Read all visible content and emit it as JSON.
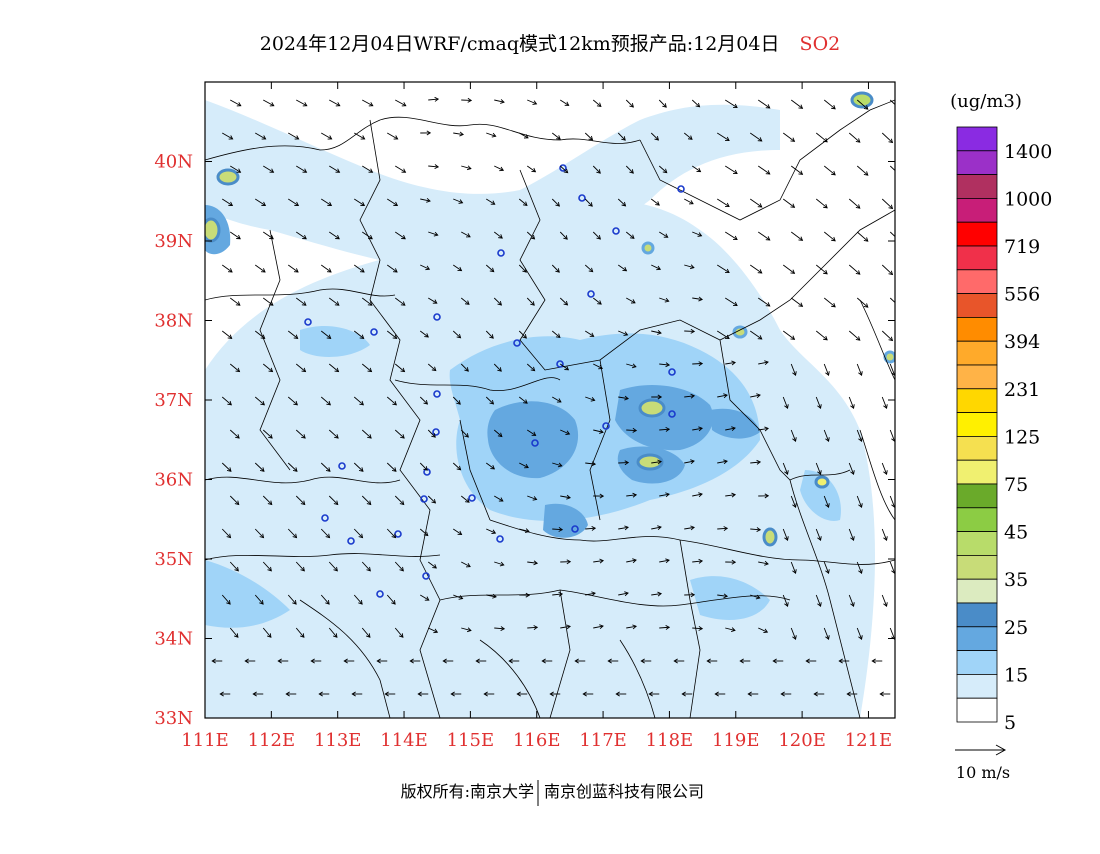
{
  "title": {
    "main": "2024年12月04日WRF/cmaq模式12km预报产品:12月04日",
    "species": "SO2",
    "species_color": "#e03030"
  },
  "map": {
    "lon_labels": [
      "111E",
      "112E",
      "113E",
      "114E",
      "115E",
      "116E",
      "117E",
      "118E",
      "119E",
      "120E",
      "121E"
    ],
    "lat_labels": [
      "40N",
      "39N",
      "38N",
      "37N",
      "36N",
      "35N",
      "34N",
      "33N"
    ],
    "label_color": "#e03030",
    "lon_range": [
      111,
      121.4
    ],
    "lat_range": [
      33,
      41
    ]
  },
  "legend": {
    "unit": "(ug/m3)",
    "labels": [
      "1400",
      "1000",
      "719",
      "556",
      "394",
      "231",
      "125",
      "75",
      "45",
      "35",
      "25",
      "15",
      "5"
    ],
    "colors_top_to_bottom": [
      "#8a2be2",
      "#9b30c8",
      "#b03060",
      "#c81e78",
      "#ff0000",
      "#f0304a",
      "#ff6a6a",
      "#e8552a",
      "#ff8c00",
      "#ffaa2a",
      "#ffb347",
      "#ffd700",
      "#fff000",
      "#f5e050",
      "#f0f070",
      "#6aaa2a",
      "#8ccc44",
      "#b8dc6a",
      "#c8dc78",
      "#dcebc0",
      "#4a8cc8",
      "#64a8e0",
      "#a0d4f8",
      "#d6ecfa",
      "#ffffff"
    ]
  },
  "wind_scale": {
    "label": "10 m/s"
  },
  "footer": {
    "copyright_prefix": "版权所有:南京大学",
    "copyright_suffix": "南京创蓝科技有限公司"
  }
}
